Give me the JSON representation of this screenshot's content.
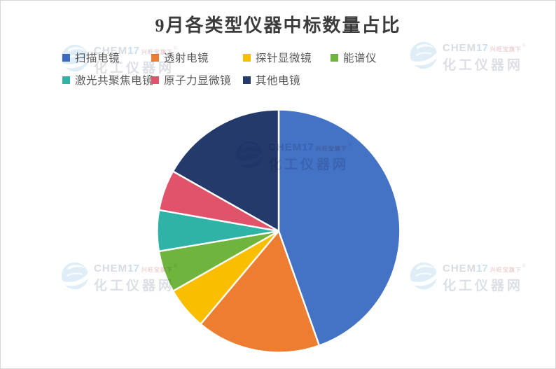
{
  "title": "9月各类型仪器中标数量占比",
  "chart_data": {
    "type": "pie",
    "title": "9月各类型仪器中标数量占比",
    "legend_position": "top",
    "direction": "clockwise",
    "start_angle_deg": 0,
    "categories": [
      "扫描电镜",
      "透射电镜",
      "探针显微镜",
      "能谱仪",
      "激光共聚焦电镜",
      "原子力显微镜",
      "其他电镜"
    ],
    "values_pct": [
      44.6,
      16.5,
      5.7,
      5.6,
      5.4,
      5.4,
      16.8
    ],
    "angles_deg": [
      160.5,
      59.5,
      20.4,
      20.0,
      19.6,
      19.5,
      60.5
    ],
    "colors": [
      "#4472C4",
      "#ED7D31",
      "#F9BE00",
      "#6FB43C",
      "#2FB3A6",
      "#E0536B",
      "#243A6B"
    ],
    "data_labels": "none"
  },
  "watermark": {
    "logo": "globe-icon",
    "brand_prefix": "CHEM",
    "brand_suffix": "17",
    "tagline": "兴旺宝旗下",
    "registered_mark": "®",
    "site_name": "化工仪器网"
  },
  "styles": {
    "background": "#ffffff",
    "border_color": "#d8d8d8",
    "title_color": "#3b3b3b",
    "legend_text_color": "#595959"
  }
}
